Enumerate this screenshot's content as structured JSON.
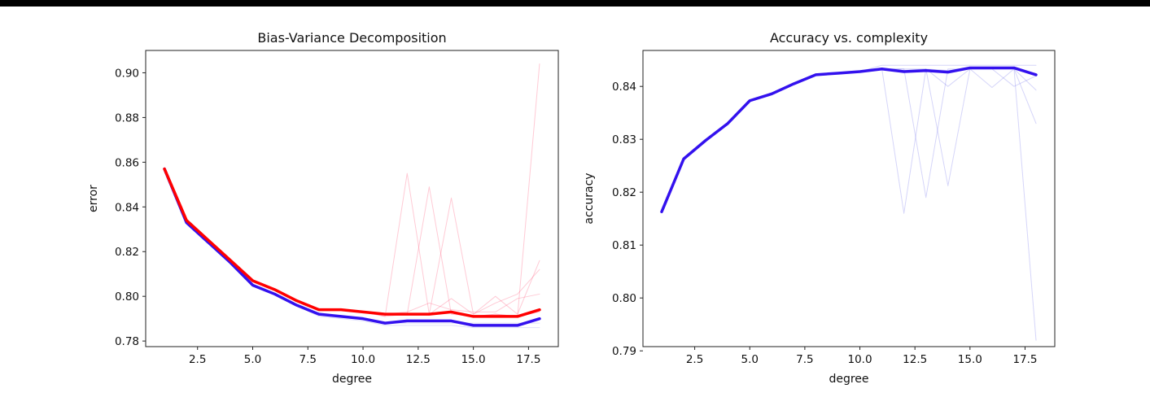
{
  "chart_data": [
    {
      "type": "line",
      "title": "Bias-Variance Decomposition",
      "xlabel": "degree",
      "ylabel": "error",
      "xlim": [
        0.15,
        18.85
      ],
      "ylim": [
        0.7775,
        0.91
      ],
      "xticks": [
        2.5,
        5.0,
        7.5,
        10.0,
        12.5,
        15.0,
        17.5
      ],
      "xtick_labels": [
        "2.5",
        "5.0",
        "7.5",
        "10.0",
        "12.5",
        "15.0",
        "17.5"
      ],
      "yticks": [
        0.78,
        0.8,
        0.82,
        0.84,
        0.86,
        0.88,
        0.9
      ],
      "ytick_labels": [
        "0.78",
        "0.80",
        "0.82",
        "0.84",
        "0.86",
        "0.88",
        "0.90"
      ],
      "x": [
        1,
        2,
        3,
        4,
        5,
        6,
        7,
        8,
        9,
        10,
        11,
        12,
        13,
        14,
        15,
        16,
        17,
        18
      ],
      "series": [
        {
          "role": "main",
          "color": "#3311ee",
          "width": 3.5,
          "values": [
            0.857,
            0.833,
            0.824,
            0.815,
            0.805,
            0.801,
            0.796,
            0.792,
            0.791,
            0.79,
            0.788,
            0.789,
            0.789,
            0.789,
            0.787,
            0.787,
            0.787,
            0.79
          ]
        },
        {
          "role": "main",
          "color": "#ff0000",
          "width": 3.5,
          "values": [
            0.857,
            0.834,
            0.825,
            0.816,
            0.807,
            0.803,
            0.798,
            0.794,
            0.794,
            0.793,
            0.792,
            0.792,
            0.792,
            0.793,
            0.791,
            0.791,
            0.791,
            0.794
          ]
        },
        {
          "role": "faint",
          "color": "#9999ee",
          "width": 1,
          "opacity": 0.3,
          "values": [
            0.857,
            0.833,
            0.824,
            0.815,
            0.805,
            0.801,
            0.796,
            0.791,
            0.79,
            0.789,
            0.787,
            0.787,
            0.787,
            0.787,
            0.786,
            0.786,
            0.786,
            0.786
          ]
        },
        {
          "role": "faint",
          "color": "#9999ee",
          "width": 1,
          "opacity": 0.3,
          "values": [
            0.857,
            0.833,
            0.824,
            0.815,
            0.805,
            0.801,
            0.796,
            0.792,
            0.791,
            0.79,
            0.788,
            0.788,
            0.788,
            0.788,
            0.788,
            0.788,
            0.788,
            0.788
          ]
        },
        {
          "role": "faint",
          "color": "#ff6688",
          "width": 1,
          "opacity": 0.35,
          "values": [
            0.857,
            0.834,
            0.825,
            0.816,
            0.807,
            0.803,
            0.798,
            0.794,
            0.794,
            0.793,
            0.791,
            0.855,
            0.792,
            0.793,
            0.791,
            0.792,
            0.791,
            0.793
          ]
        },
        {
          "role": "faint",
          "color": "#ff6688",
          "width": 1,
          "opacity": 0.35,
          "values": [
            0.857,
            0.834,
            0.825,
            0.816,
            0.807,
            0.803,
            0.798,
            0.794,
            0.794,
            0.793,
            0.791,
            0.792,
            0.849,
            0.792,
            0.791,
            0.792,
            0.791,
            0.904
          ]
        },
        {
          "role": "faint",
          "color": "#ff6688",
          "width": 1,
          "opacity": 0.35,
          "values": [
            0.857,
            0.834,
            0.825,
            0.816,
            0.807,
            0.803,
            0.798,
            0.794,
            0.794,
            0.793,
            0.792,
            0.792,
            0.792,
            0.844,
            0.792,
            0.8,
            0.792,
            0.816
          ]
        },
        {
          "role": "faint",
          "color": "#ff6688",
          "width": 1,
          "opacity": 0.35,
          "values": [
            0.857,
            0.834,
            0.825,
            0.816,
            0.807,
            0.803,
            0.798,
            0.794,
            0.794,
            0.793,
            0.792,
            0.792,
            0.792,
            0.799,
            0.792,
            0.797,
            0.801,
            0.812
          ]
        },
        {
          "role": "faint",
          "color": "#ff6688",
          "width": 1,
          "opacity": 0.35,
          "values": [
            0.857,
            0.834,
            0.825,
            0.816,
            0.807,
            0.803,
            0.798,
            0.794,
            0.794,
            0.793,
            0.792,
            0.793,
            0.797,
            0.794,
            0.793,
            0.793,
            0.799,
            0.801
          ]
        }
      ]
    },
    {
      "type": "line",
      "title": "Accuracy vs. complexity",
      "xlabel": "degree",
      "ylabel": "accuracy",
      "xlim": [
        0.15,
        18.85
      ],
      "ylim": [
        0.7908,
        0.8468
      ],
      "xticks": [
        2.5,
        5.0,
        7.5,
        10.0,
        12.5,
        15.0,
        17.5
      ],
      "xtick_labels": [
        "2.5",
        "5.0",
        "7.5",
        "10.0",
        "12.5",
        "15.0",
        "17.5"
      ],
      "yticks": [
        0.79,
        0.8,
        0.81,
        0.82,
        0.83,
        0.84
      ],
      "ytick_labels": [
        "0.79",
        "0.80",
        "0.81",
        "0.82",
        "0.83",
        "0.84"
      ],
      "x": [
        1,
        2,
        3,
        4,
        5,
        6,
        7,
        8,
        9,
        10,
        11,
        12,
        13,
        14,
        15,
        16,
        17,
        18
      ],
      "series": [
        {
          "role": "faint",
          "color": "#8888ee",
          "width": 1,
          "opacity": 0.35,
          "values": [
            0.8163,
            0.8263,
            0.8298,
            0.833,
            0.8373,
            0.8386,
            0.8405,
            0.8422,
            0.8425,
            0.8428,
            0.8433,
            0.816,
            0.8433,
            0.843,
            0.8433,
            0.8433,
            0.8433,
            0.792
          ]
        },
        {
          "role": "faint",
          "color": "#8888ee",
          "width": 1,
          "opacity": 0.35,
          "values": [
            0.8163,
            0.8263,
            0.8298,
            0.833,
            0.8373,
            0.8386,
            0.8405,
            0.8422,
            0.8425,
            0.8428,
            0.8433,
            0.8433,
            0.819,
            0.8433,
            0.8433,
            0.8433,
            0.8433,
            0.833
          ]
        },
        {
          "role": "faint",
          "color": "#8888ee",
          "width": 1,
          "opacity": 0.35,
          "values": [
            0.8163,
            0.8263,
            0.8298,
            0.833,
            0.8373,
            0.8386,
            0.8405,
            0.8422,
            0.8425,
            0.8428,
            0.8433,
            0.8433,
            0.8433,
            0.8212,
            0.8433,
            0.8398,
            0.8433,
            0.8393
          ]
        },
        {
          "role": "faint",
          "color": "#8888ee",
          "width": 1,
          "opacity": 0.35,
          "values": [
            0.8163,
            0.8263,
            0.8298,
            0.833,
            0.8373,
            0.8386,
            0.8405,
            0.8422,
            0.8425,
            0.8428,
            0.8433,
            0.843,
            0.8433,
            0.84,
            0.8433,
            0.8433,
            0.84,
            0.842
          ]
        },
        {
          "role": "faint",
          "color": "#8888ee",
          "width": 1,
          "opacity": 0.35,
          "values": [
            0.8163,
            0.8263,
            0.8298,
            0.833,
            0.8373,
            0.8386,
            0.8405,
            0.8422,
            0.8425,
            0.8428,
            0.844,
            0.844,
            0.844,
            0.844,
            0.844,
            0.844,
            0.844,
            0.844
          ]
        },
        {
          "role": "main",
          "color": "#3311ee",
          "width": 3.5,
          "values": [
            0.8163,
            0.8263,
            0.8298,
            0.833,
            0.8373,
            0.8386,
            0.8405,
            0.8422,
            0.8425,
            0.8428,
            0.8433,
            0.8428,
            0.843,
            0.8427,
            0.8435,
            0.8435,
            0.8435,
            0.8422
          ]
        }
      ]
    }
  ]
}
